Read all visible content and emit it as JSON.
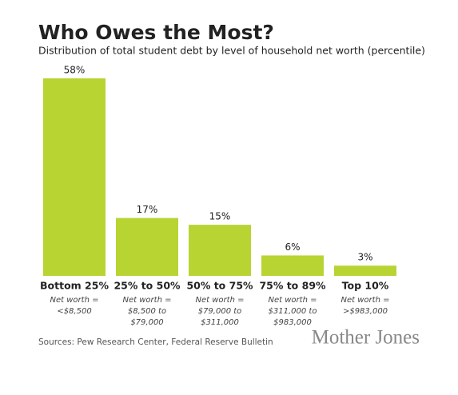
{
  "chart_data": {
    "type": "bar",
    "title": "Who Owes the Most?",
    "subtitle": "Distribution of total student debt by level of household net worth (percentile)",
    "categories": [
      "Bottom 25%",
      "25% to 50%",
      "50% to 75%",
      "75% to 89%",
      "Top 10%"
    ],
    "category_notes": [
      [
        "Net worth =",
        "<$8,500"
      ],
      [
        "Net worth =",
        "$8,500 to",
        "$79,000"
      ],
      [
        "Net worth =",
        "$79,000 to",
        "$311,000"
      ],
      [
        "Net worth =",
        "$311,000 to",
        "$983,000"
      ],
      [
        "Net worth =",
        ">$983,000"
      ]
    ],
    "values": [
      58,
      17,
      15,
      6,
      3
    ],
    "value_labels": [
      "58%",
      "17%",
      "15%",
      "6%",
      "3%"
    ],
    "color": "#b8d433",
    "source": "Sources: Pew Research Center, Federal Reserve Bulletin",
    "brand": "Mother Jones"
  }
}
